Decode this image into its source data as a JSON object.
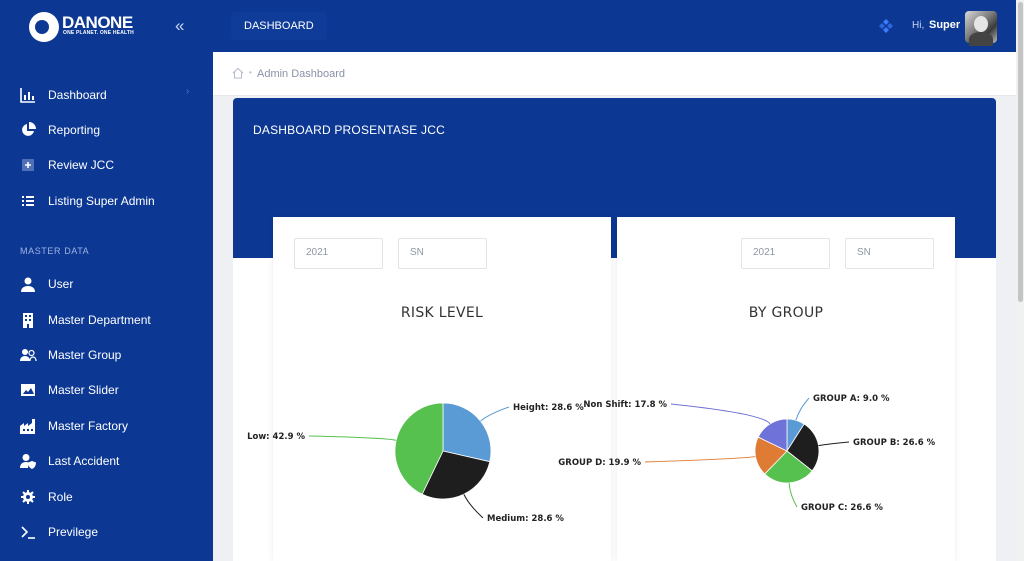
{
  "brand": {
    "name": "DANONE",
    "tagline": "ONE PLANET. ONE HEALTH"
  },
  "topbar": {
    "page_label": "DASHBOARD",
    "greeting": "Hi,",
    "user": "Super"
  },
  "breadcrumb": {
    "current": "Admin Dashboard"
  },
  "sidebar": {
    "items": [
      {
        "label": "Dashboard",
        "icon": "bar-chart-icon",
        "has_submenu": true
      },
      {
        "label": "Reporting",
        "icon": "pie-chart-icon"
      },
      {
        "label": "Review JCC",
        "icon": "plus-square-icon"
      },
      {
        "label": "Listing Super Admin",
        "icon": "list-icon"
      }
    ],
    "section_title": "MASTER DATA",
    "master_items": [
      {
        "label": "User",
        "icon": "user-icon"
      },
      {
        "label": "Master Department",
        "icon": "building-icon"
      },
      {
        "label": "Master Group",
        "icon": "group-icon"
      },
      {
        "label": "Master Slider",
        "icon": "image-icon"
      },
      {
        "label": "Master Factory",
        "icon": "factory-icon"
      },
      {
        "label": "Last Accident",
        "icon": "user-shield-icon"
      },
      {
        "label": "Role",
        "icon": "gear-icon"
      },
      {
        "label": "Previlege",
        "icon": "terminal-icon"
      }
    ]
  },
  "main": {
    "banner_title": "DASHBOARD PROSENTASE JCC",
    "cards": [
      {
        "year": "2021",
        "shift": "SN",
        "title": "RISK LEVEL"
      },
      {
        "year": "2021",
        "shift": "SN",
        "title": "BY GROUP"
      }
    ]
  },
  "colors": {
    "primary": "#0c3894",
    "text": "#333333"
  },
  "chart_data": [
    {
      "type": "pie",
      "title": "RISK LEVEL",
      "slices": [
        {
          "label": "Height",
          "value": 28.6,
          "text": "Height: 28.6 %",
          "color": "#5b9bd5"
        },
        {
          "label": "Medium",
          "value": 28.6,
          "text": "Medium: 28.6 %",
          "color": "#1e1e1e"
        },
        {
          "label": "Low",
          "value": 42.9,
          "text": "Low: 42.9 %",
          "color": "#56c14e"
        }
      ]
    },
    {
      "type": "pie",
      "title": "BY GROUP",
      "slices": [
        {
          "label": "GROUP A",
          "value": 9.0,
          "text": "GROUP A: 9.0 %",
          "color": "#5b9bd5"
        },
        {
          "label": "GROUP B",
          "value": 26.6,
          "text": "GROUP B: 26.6 %",
          "color": "#1e1e1e"
        },
        {
          "label": "GROUP C",
          "value": 26.6,
          "text": "GROUP C: 26.6 %",
          "color": "#56c14e"
        },
        {
          "label": "GROUP D",
          "value": 19.9,
          "text": "GROUP D: 19.9 %",
          "color": "#e07b35"
        },
        {
          "label": "Non Shift",
          "value": 17.8,
          "text": "Non Shift: 17.8 %",
          "color": "#6f72d8"
        }
      ]
    }
  ]
}
